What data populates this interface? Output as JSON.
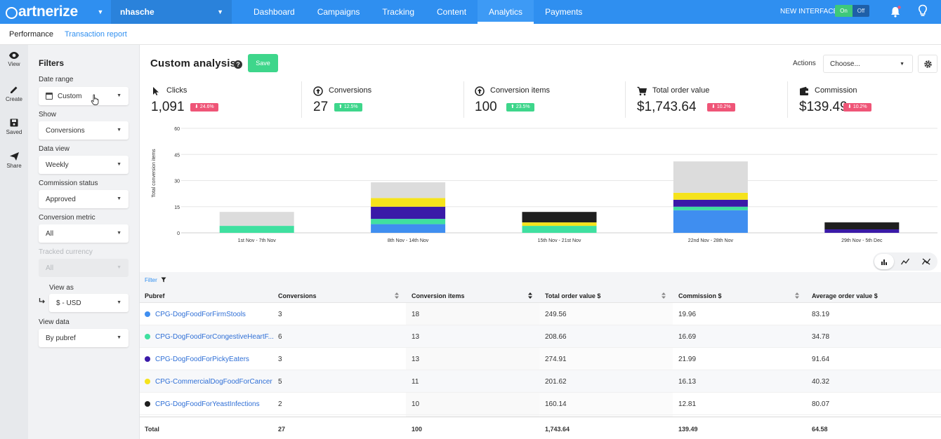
{
  "brand": {
    "logo_text": "artnerize",
    "accent": "#2f8ff0"
  },
  "topnav": {
    "account": "nhasche",
    "tabs": [
      "Dashboard",
      "Campaigns",
      "Tracking",
      "Content",
      "Analytics",
      "Payments"
    ],
    "active_tab": "Analytics",
    "new_interface_label": "NEW INTERFACE",
    "toggle_on": "On",
    "toggle_off": "Off"
  },
  "subnav": {
    "items": [
      "Performance",
      "Transaction report"
    ]
  },
  "rail": {
    "items": [
      "View",
      "Create",
      "Saved",
      "Share"
    ]
  },
  "filters": {
    "title": "Filters",
    "date_range_label": "Date range",
    "date_range_value": "Custom",
    "show_label": "Show",
    "show_value": "Conversions",
    "data_view_label": "Data view",
    "data_view_value": "Weekly",
    "commission_status_label": "Commission status",
    "commission_status_value": "Approved",
    "conversion_metric_label": "Conversion metric",
    "conversion_metric_value": "All",
    "tracked_currency_label": "Tracked currency",
    "tracked_currency_value": "All",
    "view_as_label": "View as",
    "view_as_value": "$ - USD",
    "view_data_label": "View data",
    "view_data_value": "By pubref"
  },
  "main": {
    "title": "Custom analysis",
    "save_label": "Save",
    "actions_label": "Actions",
    "actions_placeholder": "Choose..."
  },
  "metrics": [
    {
      "label": "Clicks",
      "value": "1,091",
      "change": "24.6%",
      "direction": "down",
      "icon": "cursor-icon"
    },
    {
      "label": "Conversions",
      "value": "27",
      "change": "12.5%",
      "direction": "up",
      "icon": "up-circle-icon"
    },
    {
      "label": "Conversion items",
      "value": "100",
      "change": "23.5%",
      "direction": "up",
      "icon": "up-circle-icon"
    },
    {
      "label": "Total order value",
      "value": "$1,743.64",
      "change": "10.2%",
      "direction": "down",
      "icon": "cart-icon"
    },
    {
      "label": "Commission",
      "value": "$139.49",
      "change": "10.2%",
      "direction": "down",
      "icon": "wallet-icon"
    }
  ],
  "chart_data": {
    "type": "bar",
    "stacked": true,
    "ylabel": "Total conversion items",
    "ylim": [
      0,
      60
    ],
    "yticks": [
      0,
      15,
      30,
      45,
      60
    ],
    "grid": true,
    "categories": [
      "1st Nov - 7th Nov",
      "8th Nov - 14th Nov",
      "15th Nov - 21st Nov",
      "22nd Nov - 28th Nov",
      "29th Nov - 5th Dec"
    ],
    "series": [
      {
        "color": "#3f8ef0",
        "values": [
          0,
          5,
          0,
          13,
          0
        ]
      },
      {
        "color": "#3fe0a0",
        "values": [
          4,
          3,
          4,
          2,
          0
        ]
      },
      {
        "color": "#3a1aa8",
        "values": [
          0,
          7,
          0,
          4,
          2
        ]
      },
      {
        "color": "#f5e31c",
        "values": [
          0,
          5,
          2,
          4,
          0
        ]
      },
      {
        "color": "#1f1f1f",
        "values": [
          0,
          0,
          6,
          0,
          4
        ]
      },
      {
        "color": "#dcdcdc",
        "values": [
          8,
          9,
          0,
          18,
          0
        ]
      }
    ]
  },
  "table": {
    "filter_label": "Filter",
    "columns": [
      "Pubref",
      "Conversions",
      "Conversion items",
      "Total order value $",
      "Commission $",
      "Average order value $"
    ],
    "rows": [
      {
        "color": "#3f8ef0",
        "cells": [
          "CPG-DogFoodForFirmStools",
          "3",
          "18",
          "249.56",
          "19.96",
          "83.19"
        ]
      },
      {
        "color": "#3fe0a0",
        "cells": [
          "CPG-DogFoodForCongestiveHeartF...",
          "6",
          "13",
          "208.66",
          "16.69",
          "34.78"
        ]
      },
      {
        "color": "#3a1aa8",
        "cells": [
          "CPG-DogFoodForPickyEaters",
          "3",
          "13",
          "274.91",
          "21.99",
          "91.64"
        ]
      },
      {
        "color": "#f5e31c",
        "cells": [
          "CPG-CommercialDogFoodForCancer",
          "5",
          "11",
          "201.62",
          "16.13",
          "40.32"
        ]
      },
      {
        "color": "#1f1f1f",
        "cells": [
          "CPG-DogFoodForYeastInfections",
          "2",
          "10",
          "160.14",
          "12.81",
          "80.07"
        ]
      }
    ],
    "total": [
      "Total",
      "27",
      "100",
      "1,743.64",
      "139.49",
      "64.58"
    ]
  }
}
